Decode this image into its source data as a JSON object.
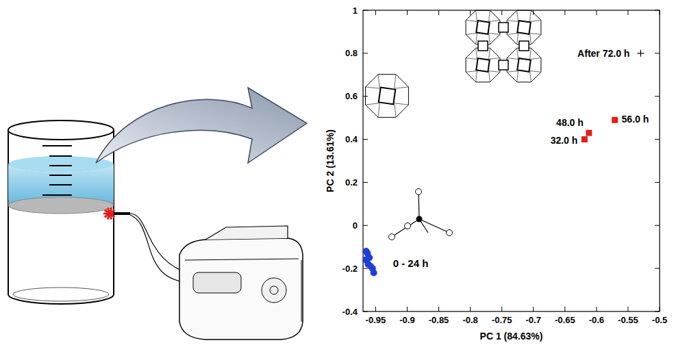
{
  "chart_data": {
    "type": "scatter",
    "x_label": "PC 1 (84.63%)",
    "y_label": "PC 2 (13.61%)",
    "xlim": [
      -0.97,
      -0.5
    ],
    "xticks": [
      -0.95,
      -0.9,
      -0.85,
      -0.8,
      -0.75,
      -0.7,
      -0.65,
      -0.6,
      -0.55,
      -0.5
    ],
    "ylim": [
      -0.4,
      1
    ],
    "yticks": [
      -0.4,
      -0.2,
      0,
      0.2,
      0.4,
      0.6,
      0.8,
      1
    ],
    "grid": false,
    "series": [
      {
        "color": "#1f3fd8",
        "marker": "circle",
        "annotation": "0 - 24 h",
        "x": [
          -0.965,
          -0.963,
          -0.966,
          -0.96,
          -0.962,
          -0.958,
          -0.955,
          -0.953
        ],
        "values": [
          -0.12,
          -0.13,
          -0.16,
          -0.15,
          -0.18,
          -0.19,
          -0.2,
          -0.22
        ]
      },
      {
        "color": "#e0201c",
        "marker": "square",
        "point_labels": [
          "32.0 h",
          "48.0 h",
          "56.0 h"
        ],
        "x": [
          -0.619,
          -0.612,
          -0.571
        ],
        "values": [
          0.4,
          0.43,
          0.49
        ]
      },
      {
        "color": "#000000",
        "marker": "plus",
        "annotation": "After 72.0 h",
        "x": [
          -0.53
        ],
        "values": [
          0.8
        ]
      }
    ]
  }
}
